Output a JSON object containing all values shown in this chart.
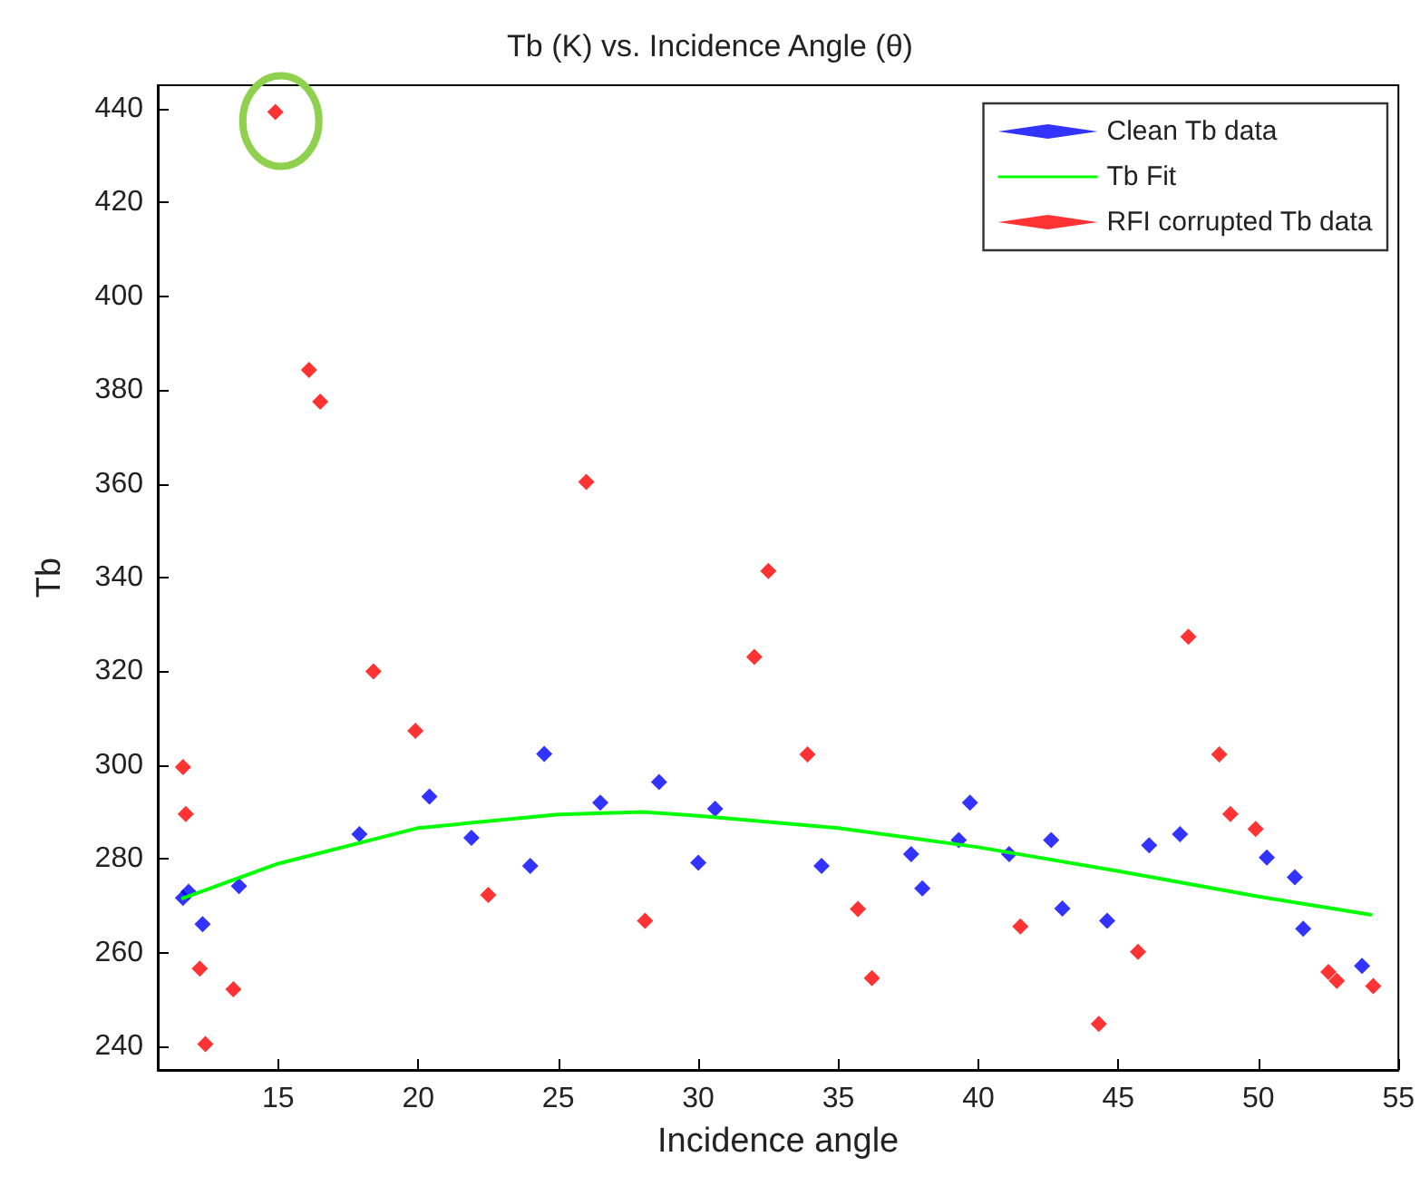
{
  "chart_data": {
    "type": "scatter",
    "title": "Tb (K) vs. Incidence Angle (θ)",
    "xlabel": "Incidence angle",
    "ylabel": "Tb",
    "xlim": [
      10.7,
      55
    ],
    "xticks": [
      15,
      20,
      25,
      30,
      35,
      40,
      45,
      50,
      55
    ],
    "ylim": [
      235,
      445
    ],
    "yticks": [
      240,
      260,
      280,
      300,
      320,
      340,
      360,
      380,
      400,
      420,
      440
    ],
    "grid": false,
    "legend": "top right",
    "marker": "diamond",
    "series": [
      {
        "name": "Clean Tb data",
        "color": "#0000ff",
        "x": [
          11.6,
          11.8,
          12.3,
          13.6,
          17.9,
          20.4,
          21.9,
          24.0,
          24.5,
          26.5,
          28.6,
          30.0,
          30.6,
          34.4,
          37.6,
          38.0,
          39.3,
          39.7,
          41.1,
          42.6,
          43.0,
          44.6,
          46.1,
          47.2,
          50.3,
          51.3,
          51.6,
          53.7
        ],
        "values": [
          271.7,
          273,
          266.1,
          274.2,
          285.3,
          293.3,
          284.5,
          278.5,
          302.4,
          292.0,
          296.4,
          279.2,
          290.7,
          278.5,
          281.0,
          273.7,
          284.0,
          292.0,
          281.0,
          284.0,
          269.4,
          266.8,
          282.9,
          285.3,
          280.3,
          276.1,
          265.1,
          257.2
        ]
      },
      {
        "name": "Tb Fit",
        "type": "line",
        "color": "#00ff00",
        "line_style": "solid",
        "marker": "none",
        "x": [
          11.6,
          15,
          20,
          25,
          28,
          30,
          35,
          40,
          45,
          50,
          54
        ],
        "values": [
          271.6,
          279,
          286.6,
          289.5,
          290,
          289.2,
          286.6,
          282.5,
          277.4,
          272,
          268.1
        ]
      },
      {
        "name": "RFI corrupted Tb data",
        "color": "#ff0000",
        "x": [
          14.9,
          16.1,
          16.5,
          11.6,
          11.7,
          18.4,
          19.9,
          12.2,
          13.4,
          12.4,
          22.5,
          26.0,
          32.5,
          32.0,
          33.9,
          28.1,
          35.7,
          36.2,
          47.5,
          48.6,
          49.0,
          49.9,
          41.5,
          45.7,
          44.3,
          52.5,
          52.8,
          54.1
        ],
        "values": [
          439.3,
          384.3,
          377.5,
          299.6,
          289.6,
          320,
          307.3,
          256.6,
          252.2,
          240.5,
          272.3,
          360.4,
          341.4,
          323.1,
          302.3,
          266.8,
          269.3,
          254.6,
          327.4,
          302.3,
          289.6,
          286.4,
          265.6,
          260.2,
          244.8,
          255.9,
          254.0,
          252.9
        ]
      }
    ]
  }
}
